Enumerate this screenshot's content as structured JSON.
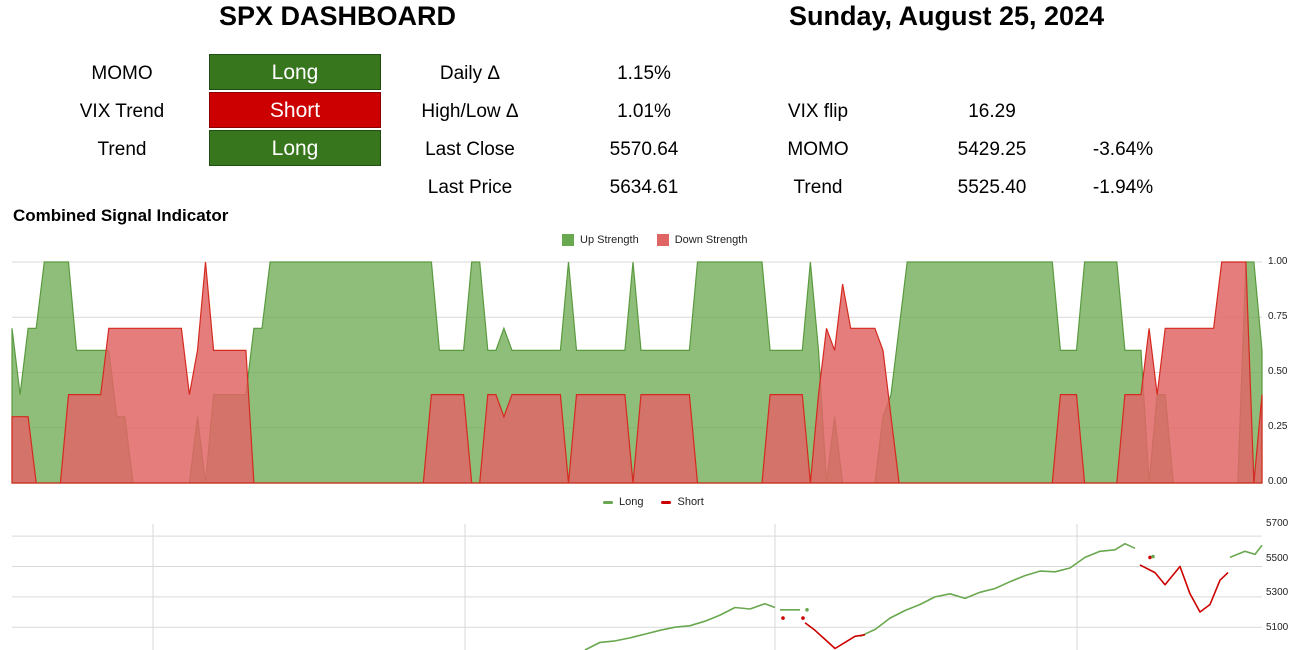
{
  "header": {
    "title": "SPX DASHBOARD",
    "date": "Sunday, August 25, 2024"
  },
  "signals": [
    {
      "label": "MOMO",
      "value": "Long",
      "state": "long"
    },
    {
      "label": "VIX Trend",
      "value": "Short",
      "state": "short"
    },
    {
      "label": "Trend",
      "value": "Long",
      "state": "long"
    }
  ],
  "stats": [
    {
      "label": "Daily Δ",
      "value": "1.15%"
    },
    {
      "label": "High/Low Δ",
      "value": "1.01%"
    },
    {
      "label": "Last Close",
      "value": "5570.64"
    },
    {
      "label": "Last Price",
      "value": "5634.61"
    }
  ],
  "levels": [
    {
      "label": "VIX flip",
      "value": "16.29",
      "pct": ""
    },
    {
      "label": "MOMO",
      "value": "5429.25",
      "pct": "-3.64%"
    },
    {
      "label": "Trend",
      "value": "5525.40",
      "pct": "-1.94%"
    }
  ],
  "combined": {
    "title": "Combined Signal Indicator",
    "legend": [
      "Up Strength",
      "Down Strength"
    ],
    "y_ticks": [
      "1.00",
      "0.75",
      "0.50",
      "0.25",
      "0.00"
    ]
  },
  "price": {
    "legend": [
      "Long",
      "Short"
    ],
    "y_ticks": [
      "5700",
      "5500",
      "5300",
      "5100"
    ]
  },
  "colors": {
    "long": "#38761d",
    "short": "#cc0000",
    "up_area": "#6aa84f",
    "down_area": "#e06666"
  },
  "chart_data": [
    {
      "type": "area",
      "title": "Combined Signal Indicator",
      "ylim": [
        0,
        1
      ],
      "grid": true,
      "legend_position": "top-center",
      "series": [
        {
          "name": "Up Strength",
          "values": [
            0.7,
            0.4,
            0.7,
            0.7,
            1.0,
            1.0,
            1.0,
            1.0,
            0.6,
            0.6,
            0.6,
            0.6,
            0.6,
            0.3,
            0.3,
            0.0,
            0.0,
            0.0,
            0.0,
            0.0,
            0.0,
            0.0,
            0.0,
            0.3,
            0.0,
            0.4,
            0.4,
            0.4,
            0.4,
            0.4,
            0.7,
            0.7,
            1.0,
            1.0,
            1.0,
            1.0,
            1.0,
            1.0,
            1.0,
            1.0,
            1.0,
            1.0,
            1.0,
            1.0,
            1.0,
            1.0,
            1.0,
            1.0,
            1.0,
            1.0,
            1.0,
            1.0,
            1.0,
            0.6,
            0.6,
            0.6,
            0.6,
            1.0,
            1.0,
            0.6,
            0.6,
            0.7,
            0.6,
            0.6,
            0.6,
            0.6,
            0.6,
            0.6,
            0.6,
            1.0,
            0.6,
            0.6,
            0.6,
            0.6,
            0.6,
            0.6,
            0.6,
            1.0,
            0.6,
            0.6,
            0.6,
            0.6,
            0.6,
            0.6,
            0.6,
            1.0,
            1.0,
            1.0,
            1.0,
            1.0,
            1.0,
            1.0,
            1.0,
            1.0,
            0.6,
            0.6,
            0.6,
            0.6,
            0.6,
            1.0,
            0.6,
            0.0,
            0.3,
            0.0,
            0.0,
            0.0,
            0.0,
            0.0,
            0.3,
            0.4,
            0.7,
            1.0,
            1.0,
            1.0,
            1.0,
            1.0,
            1.0,
            1.0,
            1.0,
            1.0,
            1.0,
            1.0,
            1.0,
            1.0,
            1.0,
            1.0,
            1.0,
            1.0,
            1.0,
            1.0,
            0.6,
            0.6,
            0.6,
            1.0,
            1.0,
            1.0,
            1.0,
            1.0,
            0.6,
            0.6,
            0.6,
            0.0,
            0.4,
            0.4,
            0.0,
            0.0,
            0.0,
            0.0,
            0.0,
            0.0,
            0.0,
            0.0,
            0.0,
            1.0,
            1.0,
            0.6
          ]
        },
        {
          "name": "Down Strength",
          "values": [
            0.3,
            0.3,
            0.3,
            0.0,
            0.0,
            0.0,
            0.0,
            0.4,
            0.4,
            0.4,
            0.4,
            0.4,
            0.7,
            0.7,
            0.7,
            0.7,
            0.7,
            0.7,
            0.7,
            0.7,
            0.7,
            0.7,
            0.4,
            0.6,
            1.0,
            0.6,
            0.6,
            0.6,
            0.6,
            0.6,
            0.0,
            0.0,
            0.0,
            0.0,
            0.0,
            0.0,
            0.0,
            0.0,
            0.0,
            0.0,
            0.0,
            0.0,
            0.0,
            0.0,
            0.0,
            0.0,
            0.0,
            0.0,
            0.0,
            0.0,
            0.0,
            0.0,
            0.4,
            0.4,
            0.4,
            0.4,
            0.4,
            0.0,
            0.0,
            0.4,
            0.4,
            0.3,
            0.4,
            0.4,
            0.4,
            0.4,
            0.4,
            0.4,
            0.4,
            0.0,
            0.4,
            0.4,
            0.4,
            0.4,
            0.4,
            0.4,
            0.4,
            0.0,
            0.4,
            0.4,
            0.4,
            0.4,
            0.4,
            0.4,
            0.4,
            0.0,
            0.0,
            0.0,
            0.0,
            0.0,
            0.0,
            0.0,
            0.0,
            0.0,
            0.4,
            0.4,
            0.4,
            0.4,
            0.4,
            0.0,
            0.4,
            0.7,
            0.6,
            0.9,
            0.7,
            0.7,
            0.7,
            0.7,
            0.6,
            0.3,
            0.0,
            0.0,
            0.0,
            0.0,
            0.0,
            0.0,
            0.0,
            0.0,
            0.0,
            0.0,
            0.0,
            0.0,
            0.0,
            0.0,
            0.0,
            0.0,
            0.0,
            0.0,
            0.0,
            0.0,
            0.4,
            0.4,
            0.4,
            0.0,
            0.0,
            0.0,
            0.0,
            0.0,
            0.4,
            0.4,
            0.4,
            0.7,
            0.4,
            0.7,
            0.7,
            0.7,
            0.7,
            0.7,
            0.7,
            0.7,
            1.0,
            1.0,
            1.0,
            1.0,
            0.0,
            0.4
          ]
        }
      ]
    },
    {
      "type": "line",
      "ylim": [
        4950,
        5780
      ],
      "grid": true,
      "legend_position": "top-center",
      "series": [
        {
          "name": "Long",
          "segments": [
            [
              [
                585,
                4950
              ],
              [
                600,
                5000
              ],
              [
                615,
                5010
              ],
              [
                630,
                5030
              ],
              [
                645,
                5055
              ],
              [
                660,
                5080
              ],
              [
                675,
                5100
              ],
              [
                690,
                5110
              ],
              [
                705,
                5140
              ],
              [
                720,
                5180
              ],
              [
                735,
                5230
              ],
              [
                750,
                5220
              ],
              [
                765,
                5255
              ],
              [
                775,
                5230
              ]
            ],
            [
              [
                780,
                5215
              ],
              [
                790,
                5215
              ],
              [
                800,
                5215
              ]
            ],
            [
              [
                860,
                5040
              ],
              [
                875,
                5085
              ],
              [
                890,
                5160
              ],
              [
                905,
                5210
              ],
              [
                920,
                5250
              ],
              [
                935,
                5300
              ],
              [
                950,
                5320
              ],
              [
                965,
                5290
              ],
              [
                980,
                5330
              ],
              [
                995,
                5355
              ],
              [
                1010,
                5400
              ],
              [
                1025,
                5440
              ],
              [
                1040,
                5470
              ],
              [
                1055,
                5465
              ],
              [
                1070,
                5490
              ],
              [
                1085,
                5560
              ],
              [
                1100,
                5600
              ],
              [
                1115,
                5610
              ],
              [
                1125,
                5650
              ],
              [
                1135,
                5620
              ]
            ],
            [
              [
                1230,
                5560
              ],
              [
                1245,
                5600
              ],
              [
                1255,
                5580
              ],
              [
                1262,
                5640
              ]
            ]
          ]
        },
        {
          "name": "Short",
          "segments": [
            [
              [
                805,
                5130
              ],
              [
                815,
                5080
              ],
              [
                825,
                5020
              ],
              [
                835,
                4960
              ],
              [
                845,
                5000
              ],
              [
                855,
                5040
              ],
              [
                865,
                5050
              ]
            ],
            [
              [
                1140,
                5510
              ],
              [
                1155,
                5460
              ],
              [
                1165,
                5380
              ],
              [
                1180,
                5500
              ],
              [
                1190,
                5320
              ],
              [
                1200,
                5200
              ],
              [
                1210,
                5250
              ],
              [
                1220,
                5410
              ],
              [
                1228,
                5460
              ]
            ]
          ]
        }
      ]
    }
  ]
}
